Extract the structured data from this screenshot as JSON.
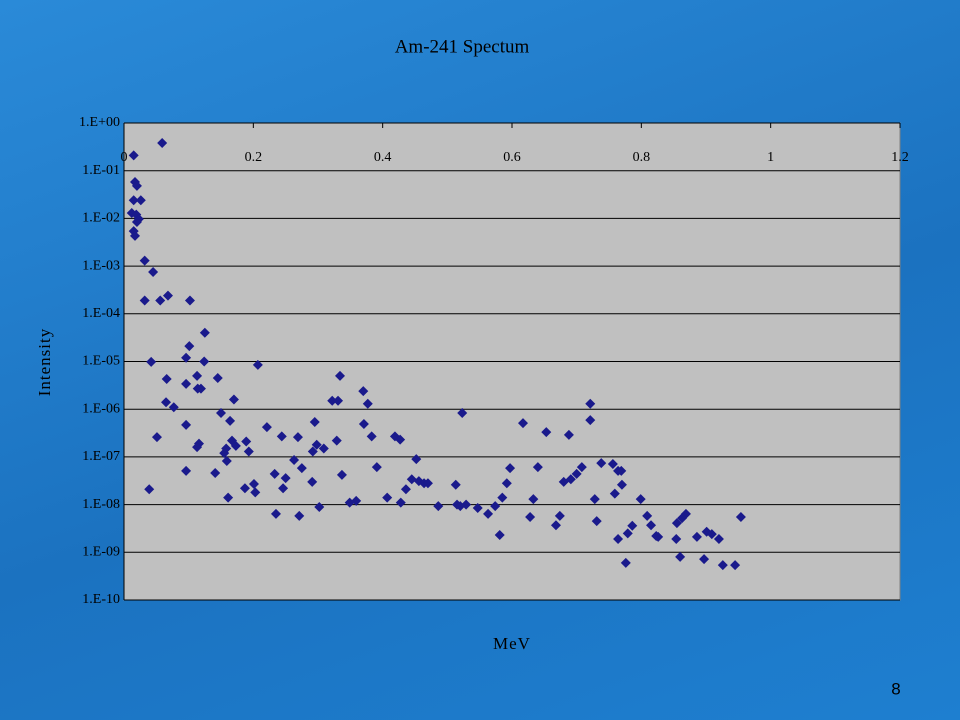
{
  "chart_data": {
    "type": "scatter",
    "title": "Am-241 Spectum",
    "x_label": "MeV",
    "y_label": "Intensity",
    "color": "#1a1a8c",
    "plot_background": "#c0c0c0",
    "grid": true,
    "yscale": "log",
    "xlim": [
      0,
      1.2
    ],
    "xticks": [
      0,
      0.2,
      0.4,
      0.6,
      0.8,
      1,
      1.2
    ],
    "ylim": [
      1e-10,
      1
    ],
    "yticks": [
      {
        "value": 1,
        "label": "1.E+00"
      },
      {
        "value": 0.1,
        "label": "1.E-01"
      },
      {
        "value": 0.01,
        "label": "1.E-02"
      },
      {
        "value": 0.001,
        "label": "1.E-03"
      },
      {
        "value": 0.0001,
        "label": "1.E-04"
      },
      {
        "value": 1e-05,
        "label": "1.E-05"
      },
      {
        "value": 1e-06,
        "label": "1.E-06"
      },
      {
        "value": 1e-07,
        "label": "1.E-07"
      },
      {
        "value": 1e-08,
        "label": "1.E-08"
      },
      {
        "value": 1e-09,
        "label": "1.E-09"
      },
      {
        "value": 1e-10,
        "label": "1.E-10"
      }
    ],
    "x": [
      0.015,
      0.017,
      0.02,
      0.015,
      0.026,
      0.012,
      0.019,
      0.023,
      0.02,
      0.015,
      0.017,
      0.032,
      0.045,
      0.032,
      0.042,
      0.051,
      0.039,
      0.059,
      0.056,
      0.068,
      0.066,
      0.065,
      0.077,
      0.096,
      0.101,
      0.096,
      0.096,
      0.096,
      0.102,
      0.113,
      0.114,
      0.119,
      0.124,
      0.125,
      0.116,
      0.113,
      0.141,
      0.145,
      0.15,
      0.155,
      0.159,
      0.158,
      0.164,
      0.167,
      0.173,
      0.161,
      0.17,
      0.189,
      0.193,
      0.187,
      0.203,
      0.201,
      0.207,
      0.221,
      0.235,
      0.233,
      0.244,
      0.246,
      0.25,
      0.263,
      0.269,
      0.271,
      0.275,
      0.291,
      0.292,
      0.295,
      0.302,
      0.298,
      0.309,
      0.322,
      0.331,
      0.334,
      0.329,
      0.337,
      0.349,
      0.359,
      0.371,
      0.37,
      0.377,
      0.383,
      0.391,
      0.407,
      0.419,
      0.427,
      0.428,
      0.436,
      0.445,
      0.452,
      0.456,
      0.464,
      0.47,
      0.486,
      0.513,
      0.515,
      0.523,
      0.52,
      0.529,
      0.547,
      0.563,
      0.574,
      0.581,
      0.585,
      0.592,
      0.597,
      0.617,
      0.628,
      0.633,
      0.64,
      0.653,
      0.668,
      0.674,
      0.68,
      0.688,
      0.691,
      0.7,
      0.708,
      0.721,
      0.721,
      0.728,
      0.731,
      0.738,
      0.756,
      0.759,
      0.764,
      0.769,
      0.77,
      0.764,
      0.776,
      0.779,
      0.786,
      0.799,
      0.809,
      0.815,
      0.823,
      0.826,
      0.854,
      0.855,
      0.86,
      0.863,
      0.869,
      0.886,
      0.897,
      0.901,
      0.909,
      0.92,
      0.926,
      0.945,
      0.954
    ],
    "values": [
      0.21,
      0.058,
      0.048,
      0.024,
      0.024,
      0.013,
      0.012,
      0.0097,
      0.0084,
      0.0054,
      0.0043,
      0.0013,
      0.00075,
      0.00019,
      9.8e-06,
      2.6e-07,
      2.1e-08,
      0.38,
      0.00019,
      0.00024,
      4.3e-06,
      1.4e-06,
      1.1e-06,
      1.2e-05,
      2.1e-05,
      3.4e-06,
      4.7e-07,
      5.1e-08,
      0.00019,
      5e-06,
      2.7e-06,
      2.7e-06,
      1e-05,
      4e-05,
      1.9e-07,
      1.6e-07,
      4.6e-08,
      4.5e-06,
      8.3e-07,
      1.2e-07,
      8.2e-08,
      1.5e-07,
      5.7e-07,
      2.2e-07,
      1.7e-07,
      1.4e-08,
      1.6e-06,
      2.1e-07,
      1.3e-07,
      2.2e-08,
      1.8e-08,
      2.7e-08,
      8.5e-06,
      4.2e-07,
      6.4e-09,
      4.4e-08,
      2.7e-07,
      2.2e-08,
      3.6e-08,
      8.6e-08,
      2.6e-07,
      5.8e-09,
      5.8e-08,
      3e-08,
      1.3e-07,
      5.4e-07,
      8.9e-09,
      1.8e-07,
      1.5e-07,
      1.5e-06,
      1.5e-06,
      5e-06,
      2.2e-07,
      4.2e-08,
      1.1e-08,
      1.2e-08,
      4.9e-07,
      2.4e-06,
      1.3e-06,
      2.7e-07,
      6.1e-08,
      1.4e-08,
      2.7e-07,
      2.3e-07,
      1.1e-08,
      2.1e-08,
      3.4e-08,
      9e-08,
      3.1e-08,
      2.8e-08,
      2.8e-08,
      9.3e-09,
      2.6e-08,
      1e-08,
      8.3e-07,
      9.3e-09,
      1e-08,
      8.5e-09,
      6.4e-09,
      9.3e-09,
      2.3e-09,
      1.4e-08,
      2.8e-08,
      5.8e-08,
      5.1e-07,
      5.5e-09,
      1.3e-08,
      6.1e-08,
      3.3e-07,
      3.7e-09,
      5.8e-09,
      3e-08,
      2.9e-07,
      3.4e-08,
      4.4e-08,
      6.1e-08,
      1.3e-06,
      5.9e-07,
      1.3e-08,
      4.5e-09,
      7.4e-08,
      7.1e-08,
      1.7e-08,
      5.1e-08,
      5.1e-08,
      2.6e-08,
      1.9e-09,
      6e-10,
      2.5e-09,
      3.6e-09,
      1.3e-08,
      5.8e-09,
      3.7e-09,
      2.2e-09,
      2.1e-09,
      1.9e-09,
      4.1e-09,
      8e-10,
      5.2e-09,
      6.4e-09,
      2.1e-09,
      7.2e-10,
      2.7e-09,
      2.4e-09,
      1.9e-09,
      5.4e-10,
      5.4e-10,
      5.5e-09
    ]
  },
  "slide_number": "8"
}
